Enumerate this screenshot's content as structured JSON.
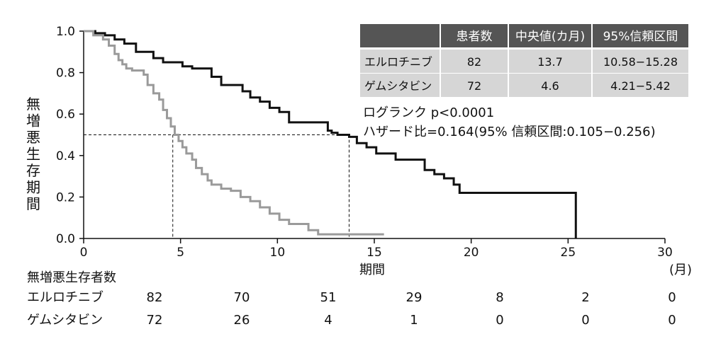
{
  "chart_data": {
    "type": "line",
    "step": true,
    "xlabel": "期間",
    "xunit": "(月)",
    "ylabel": "無増悪生存期間",
    "xlim": [
      0,
      30
    ],
    "ylim": [
      0,
      1.0
    ],
    "xticks": [
      0,
      5,
      10,
      15,
      20,
      25,
      30
    ],
    "yticks": [
      "0.0",
      "0.2",
      "0.4",
      "0.6",
      "0.8",
      "1.0"
    ],
    "median_line_y": 0.5,
    "series": [
      {
        "name": "エルロチニブ",
        "color": "#111111",
        "x": [
          0,
          0.6,
          1.1,
          1.6,
          2.1,
          2.7,
          3.6,
          4.1,
          5.1,
          5.6,
          6.6,
          7.1,
          8.2,
          8.6,
          9.1,
          9.6,
          10.1,
          10.6,
          12.6,
          12.8,
          13.1,
          13.4,
          13.7,
          14.1,
          14.6,
          15.1,
          16.1,
          17.6,
          18.1,
          18.6,
          19.1,
          19.4,
          25.4,
          25.4
        ],
        "y": [
          1.0,
          0.99,
          0.98,
          0.96,
          0.94,
          0.9,
          0.87,
          0.85,
          0.83,
          0.82,
          0.78,
          0.74,
          0.71,
          0.68,
          0.66,
          0.63,
          0.61,
          0.56,
          0.52,
          0.51,
          0.5,
          0.5,
          0.49,
          0.46,
          0.44,
          0.41,
          0.38,
          0.33,
          0.31,
          0.29,
          0.26,
          0.22,
          0.22,
          0.0
        ]
      },
      {
        "name": "ゲムシタビン",
        "color": "#9a9a9a",
        "x": [
          0,
          0.5,
          1.0,
          1.3,
          1.6,
          1.8,
          2.0,
          2.2,
          2.5,
          2.9,
          3.1,
          3.3,
          3.6,
          3.9,
          4.1,
          4.3,
          4.5,
          4.7,
          4.9,
          5.1,
          5.3,
          5.6,
          5.8,
          6.1,
          6.4,
          6.6,
          7.1,
          7.6,
          8.1,
          8.6,
          9.1,
          9.6,
          10.1,
          10.6,
          11.6,
          12.1,
          15.5
        ],
        "y": [
          1.0,
          0.98,
          0.96,
          0.93,
          0.89,
          0.86,
          0.84,
          0.82,
          0.81,
          0.81,
          0.79,
          0.74,
          0.7,
          0.67,
          0.62,
          0.58,
          0.54,
          0.5,
          0.47,
          0.44,
          0.41,
          0.38,
          0.34,
          0.31,
          0.28,
          0.26,
          0.24,
          0.23,
          0.2,
          0.18,
          0.15,
          0.12,
          0.09,
          0.07,
          0.04,
          0.02,
          0.02
        ]
      }
    ],
    "medians": [
      {
        "series": "エルロチニブ",
        "x": 13.7
      },
      {
        "series": "ゲムシタビン",
        "x": 4.6
      }
    ]
  },
  "summary_table": {
    "headers": [
      "",
      "患者数",
      "中央値(カ月)",
      "95%信頼区間"
    ],
    "rows": [
      {
        "name": "エルロチニブ",
        "n": "82",
        "median": "13.7",
        "ci": "10.58−15.28"
      },
      {
        "name": "ゲムシタビン",
        "n": "72",
        "median": "4.6",
        "ci": "4.21−5.42"
      }
    ]
  },
  "annotations": {
    "logrank": "ログランク p<0.0001",
    "hazard": "ハザード比=0.164(95% 信頼区間:0.105−0.256)"
  },
  "risk_table": {
    "title": "無増悪生存者数",
    "rows": [
      {
        "name": "エルロチニブ",
        "values": [
          "82",
          "70",
          "51",
          "29",
          "8",
          "2",
          "0"
        ]
      },
      {
        "name": "ゲムシタビン",
        "values": [
          "72",
          "26",
          "4",
          "1",
          "0",
          "0",
          "0"
        ]
      }
    ]
  }
}
